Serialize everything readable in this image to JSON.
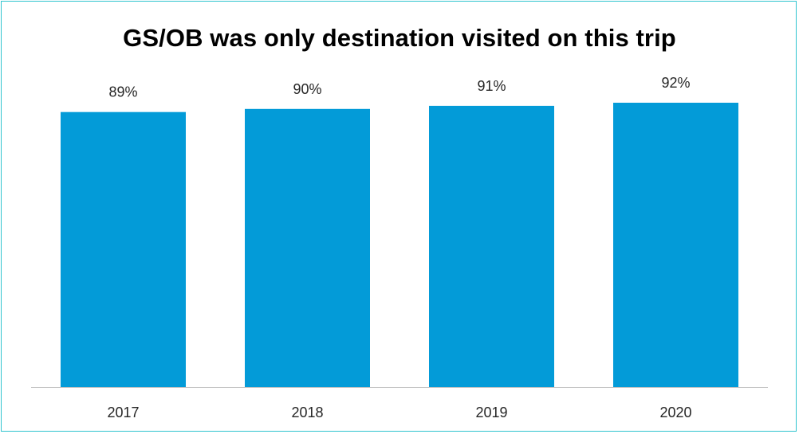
{
  "chart_data": {
    "type": "bar",
    "title": "GS/OB was only destination visited on this trip",
    "categories": [
      "2017",
      "2018",
      "2019",
      "2020"
    ],
    "values": [
      89,
      90,
      91,
      92
    ],
    "data_labels": [
      "89%",
      "90%",
      "91%",
      "92%"
    ],
    "ylim": [
      0,
      100
    ],
    "xlabel": "",
    "ylabel": "",
    "grid": false,
    "legend": "none",
    "bar_color": "#039bd8",
    "axis_color": "#bfbfbf",
    "frame_color": "#2fc4cf"
  }
}
